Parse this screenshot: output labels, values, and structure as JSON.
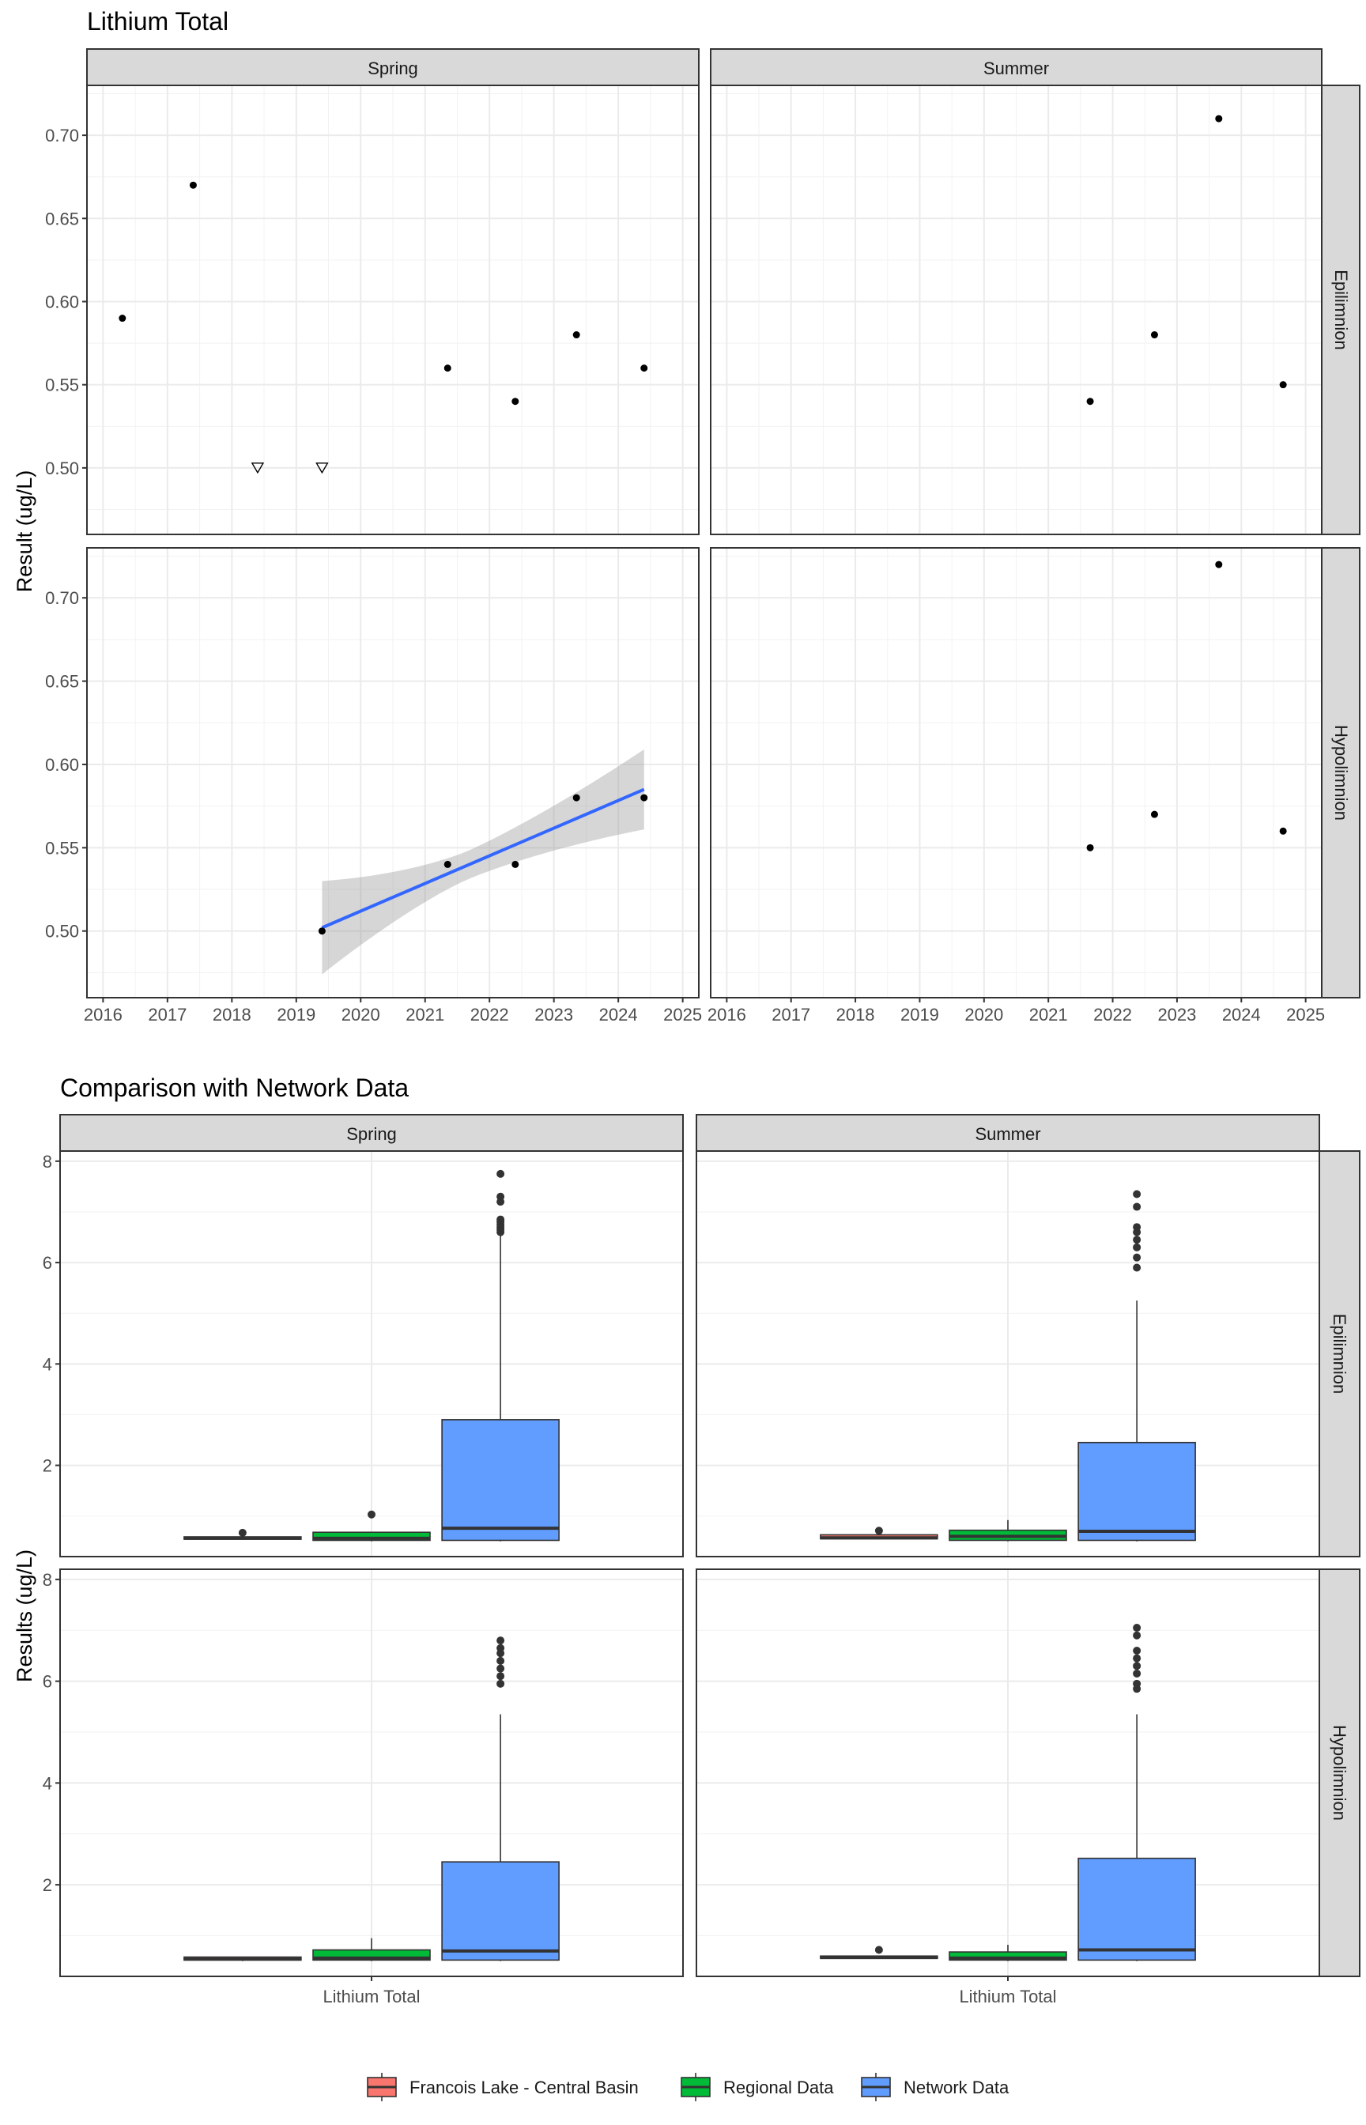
{
  "chart_data": [
    {
      "type": "scatter",
      "title": "Lithium Total",
      "ylabel": "Result (ug/L)",
      "xlabel": "",
      "ylim": [
        0.46,
        0.73
      ],
      "xlim": [
        2015.75,
        2025.25
      ],
      "x_ticks": [
        "2016",
        "2017",
        "2018",
        "2019",
        "2020",
        "2021",
        "2022",
        "2023",
        "2024",
        "2025"
      ],
      "y_ticks": [
        "0.50",
        "0.55",
        "0.60",
        "0.65",
        "0.70"
      ],
      "columns": [
        "Spring",
        "Summer"
      ],
      "rows": [
        "Epilimnion",
        "Hypolimnion"
      ],
      "grid": true,
      "panels": [
        {
          "column": "Spring",
          "row": "Epilimnion",
          "points": [
            {
              "x": 2016.3,
              "y": 0.59
            },
            {
              "x": 2017.4,
              "y": 0.67
            },
            {
              "x": 2021.35,
              "y": 0.56
            },
            {
              "x": 2022.4,
              "y": 0.54
            },
            {
              "x": 2023.35,
              "y": 0.58
            },
            {
              "x": 2024.4,
              "y": 0.56
            }
          ],
          "below_detection": [
            {
              "x": 2018.4,
              "y": 0.5
            },
            {
              "x": 2019.4,
              "y": 0.5
            }
          ]
        },
        {
          "column": "Summer",
          "row": "Epilimnion",
          "points": [
            {
              "x": 2021.65,
              "y": 0.54
            },
            {
              "x": 2022.65,
              "y": 0.58
            },
            {
              "x": 2023.65,
              "y": 0.71
            },
            {
              "x": 2024.65,
              "y": 0.55
            }
          ],
          "below_detection": []
        },
        {
          "column": "Spring",
          "row": "Hypolimnion",
          "points": [
            {
              "x": 2019.4,
              "y": 0.5
            },
            {
              "x": 2021.35,
              "y": 0.54
            },
            {
              "x": 2022.4,
              "y": 0.54
            },
            {
              "x": 2023.35,
              "y": 0.58
            },
            {
              "x": 2024.4,
              "y": 0.58
            }
          ],
          "below_detection": [],
          "trend": {
            "x": [
              2019.4,
              2024.4
            ],
            "y": [
              0.502,
              0.585
            ],
            "ci_upper": [
              0.53,
              0.609
            ],
            "ci_lower": [
              0.472,
              0.561
            ],
            "color": "#3366FF"
          }
        },
        {
          "column": "Summer",
          "row": "Hypolimnion",
          "points": [
            {
              "x": 2021.65,
              "y": 0.55
            },
            {
              "x": 2022.65,
              "y": 0.57
            },
            {
              "x": 2023.65,
              "y": 0.72
            },
            {
              "x": 2024.65,
              "y": 0.56
            }
          ],
          "below_detection": []
        }
      ]
    },
    {
      "type": "box",
      "title": "Comparison with Network Data",
      "ylabel": "Results (ug/L)",
      "xlabel": "",
      "categories": [
        "Lithium Total"
      ],
      "ylim": [
        0.2,
        8.2
      ],
      "y_ticks": [
        "2",
        "4",
        "6",
        "8"
      ],
      "columns": [
        "Spring",
        "Summer"
      ],
      "rows": [
        "Epilimnion",
        "Hypolimnion"
      ],
      "grid": true,
      "legend": {
        "position": "bottom",
        "entries": [
          {
            "name": "Francois Lake - Central Basin",
            "color": "#F8766D"
          },
          {
            "name": "Regional Data",
            "color": "#00BA38"
          },
          {
            "name": "Network Data",
            "color": "#619CFF"
          }
        ]
      },
      "panels": [
        {
          "column": "Spring",
          "row": "Epilimnion",
          "groups": [
            {
              "name": "Francois Lake - Central Basin",
              "min": 0.54,
              "q1": 0.55,
              "median": 0.56,
              "q3": 0.59,
              "max": 0.59,
              "outliers": [
                0.67
              ]
            },
            {
              "name": "Regional Data",
              "min": 0.5,
              "q1": 0.52,
              "median": 0.56,
              "q3": 0.68,
              "max": 0.68,
              "outliers": [
                1.03
              ]
            },
            {
              "name": "Network Data",
              "min": 0.5,
              "q1": 0.52,
              "median": 0.76,
              "q3": 2.9,
              "max": 6.55,
              "outliers": [
                6.6,
                6.65,
                6.7,
                6.75,
                6.8,
                6.85,
                7.2,
                7.3,
                7.75
              ]
            }
          ]
        },
        {
          "column": "Summer",
          "row": "Epilimnion",
          "groups": [
            {
              "name": "Francois Lake - Central Basin",
              "min": 0.54,
              "q1": 0.55,
              "median": 0.57,
              "q3": 0.63,
              "max": 0.63,
              "outliers": [
                0.71
              ]
            },
            {
              "name": "Regional Data",
              "min": 0.5,
              "q1": 0.52,
              "median": 0.6,
              "q3": 0.72,
              "max": 0.92,
              "outliers": []
            },
            {
              "name": "Network Data",
              "min": 0.5,
              "q1": 0.52,
              "median": 0.7,
              "q3": 2.45,
              "max": 5.25,
              "outliers": [
                5.9,
                6.1,
                6.3,
                6.45,
                6.6,
                6.7,
                7.1,
                7.35
              ]
            }
          ]
        },
        {
          "column": "Spring",
          "row": "Hypolimnion",
          "groups": [
            {
              "name": "Francois Lake - Central Basin",
              "min": 0.5,
              "q1": 0.52,
              "median": 0.54,
              "q3": 0.58,
              "max": 0.58,
              "outliers": []
            },
            {
              "name": "Regional Data",
              "min": 0.5,
              "q1": 0.52,
              "median": 0.56,
              "q3": 0.72,
              "max": 0.95,
              "outliers": []
            },
            {
              "name": "Network Data",
              "min": 0.5,
              "q1": 0.52,
              "median": 0.7,
              "q3": 2.45,
              "max": 5.35,
              "outliers": [
                5.95,
                6.1,
                6.25,
                6.4,
                6.55,
                6.65,
                6.8
              ]
            }
          ]
        },
        {
          "column": "Summer",
          "row": "Hypolimnion",
          "groups": [
            {
              "name": "Francois Lake - Central Basin",
              "min": 0.55,
              "q1": 0.56,
              "median": 0.57,
              "q3": 0.6,
              "max": 0.6,
              "outliers": [
                0.72
              ]
            },
            {
              "name": "Regional Data",
              "min": 0.5,
              "q1": 0.52,
              "median": 0.56,
              "q3": 0.68,
              "max": 0.82,
              "outliers": []
            },
            {
              "name": "Network Data",
              "min": 0.5,
              "q1": 0.52,
              "median": 0.72,
              "q3": 2.52,
              "max": 5.35,
              "outliers": [
                5.85,
                5.95,
                6.15,
                6.3,
                6.45,
                6.6,
                6.9,
                7.05
              ]
            }
          ]
        }
      ]
    }
  ]
}
